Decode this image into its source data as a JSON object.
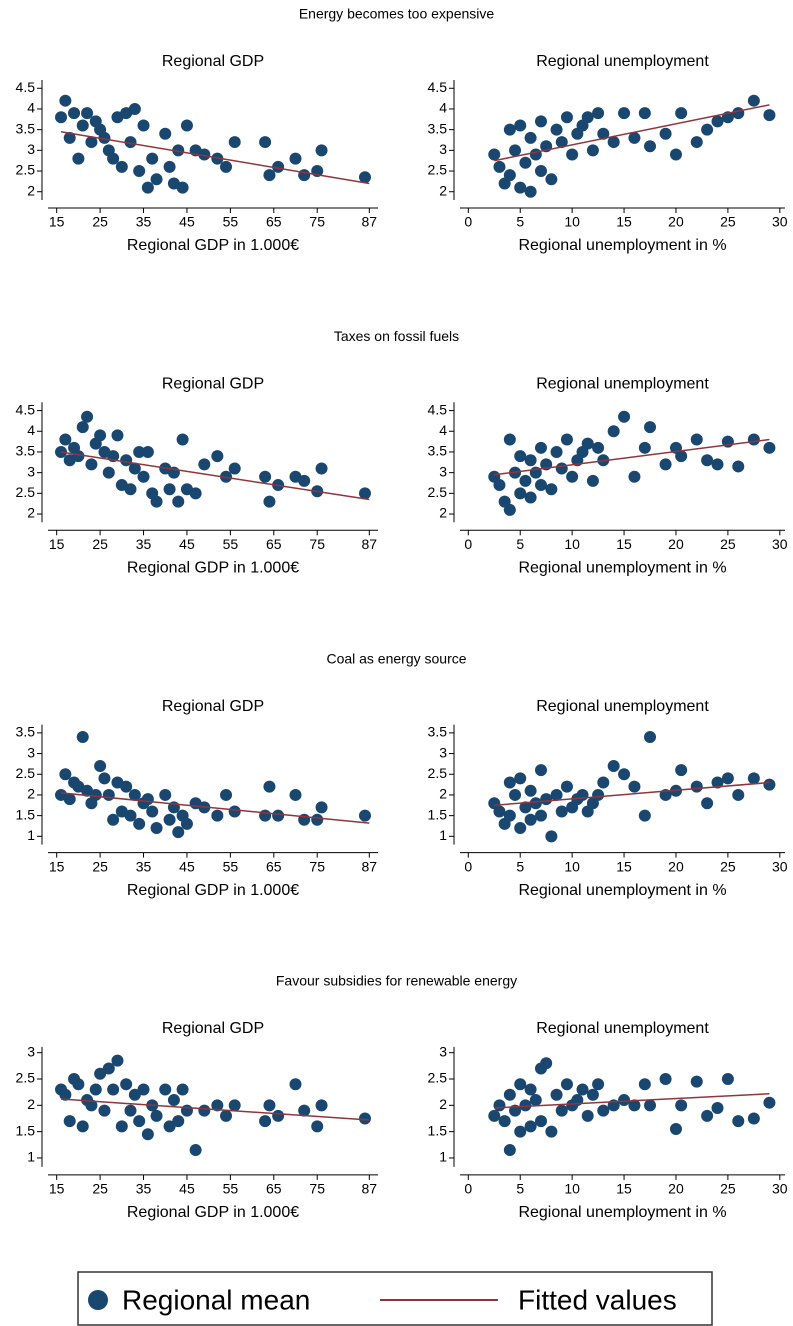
{
  "chart_data": [
    {
      "type": "scatter",
      "suptitle": "Energy becomes too expensive",
      "title": "Regional GDP",
      "x_label": "Regional GDP in 1.000€",
      "xlim": [
        13,
        89
      ],
      "xticks": [
        15,
        25,
        35,
        45,
        55,
        65,
        75,
        87
      ],
      "ylim": [
        1.8,
        4.7
      ],
      "yticks": [
        2,
        2.5,
        3,
        3.5,
        4,
        4.5
      ],
      "series": [
        {
          "name": "Regional mean",
          "color": "#1a476f",
          "x": [
            16,
            17,
            18,
            19,
            20,
            21,
            22,
            23,
            24,
            25,
            26,
            27,
            28,
            29,
            30,
            31,
            32,
            33,
            34,
            35,
            36,
            37,
            38,
            40,
            41,
            42,
            43,
            44,
            45,
            47,
            49,
            52,
            54,
            56,
            63,
            64,
            66,
            70,
            72,
            75,
            76,
            86
          ],
          "values": [
            3.8,
            4.2,
            3.3,
            3.9,
            2.8,
            3.6,
            3.9,
            3.2,
            3.7,
            3.5,
            3.3,
            3.0,
            2.8,
            3.8,
            2.6,
            3.9,
            3.2,
            4.0,
            2.5,
            3.6,
            2.1,
            2.8,
            2.3,
            3.4,
            2.6,
            2.2,
            3.0,
            2.1,
            3.6,
            3.0,
            2.9,
            2.8,
            2.6,
            3.2,
            3.2,
            2.4,
            2.6,
            2.8,
            2.4,
            2.5,
            3.0,
            2.35
          ]
        },
        {
          "name": "Fitted values",
          "color": "#90353b",
          "x": [
            16,
            87
          ],
          "values": [
            3.45,
            2.2
          ]
        }
      ]
    },
    {
      "type": "scatter",
      "title": "Regional unemployment",
      "x_label": "Regional unemployment in %",
      "xlim": [
        -0.8,
        30.5
      ],
      "xticks": [
        0,
        5,
        10,
        15,
        20,
        25,
        30
      ],
      "ylim": [
        1.8,
        4.7
      ],
      "yticks": [
        2,
        2.5,
        3,
        3.5,
        4,
        4.5
      ],
      "series": [
        {
          "name": "Regional mean",
          "color": "#1a476f",
          "x": [
            2.5,
            3,
            3.5,
            4,
            4,
            4.5,
            5,
            5,
            5.5,
            6,
            6,
            6.5,
            7,
            7,
            7.5,
            8,
            8.5,
            9,
            9.5,
            10,
            10.5,
            11,
            11.5,
            12,
            12.5,
            13,
            14,
            15,
            16,
            17,
            17.5,
            19,
            20,
            20.5,
            22,
            23,
            24,
            25,
            26,
            27.5,
            29
          ],
          "values": [
            2.9,
            2.6,
            2.2,
            3.5,
            2.4,
            3.0,
            3.6,
            2.1,
            2.7,
            3.3,
            2.0,
            2.9,
            3.7,
            2.5,
            3.1,
            2.3,
            3.5,
            3.2,
            3.8,
            2.9,
            3.4,
            3.6,
            3.8,
            3.0,
            3.9,
            3.4,
            3.2,
            3.9,
            3.3,
            3.9,
            3.1,
            3.4,
            2.9,
            3.9,
            3.2,
            3.5,
            3.7,
            3.8,
            3.9,
            4.2,
            3.85
          ]
        },
        {
          "name": "Fitted values",
          "color": "#90353b",
          "x": [
            2.5,
            29
          ],
          "values": [
            2.75,
            4.1
          ]
        }
      ]
    },
    {
      "type": "scatter",
      "suptitle": "Taxes on fossil fuels",
      "title": "Regional GDP",
      "x_label": "Regional GDP in 1.000€",
      "xlim": [
        13,
        89
      ],
      "xticks": [
        15,
        25,
        35,
        45,
        55,
        65,
        75,
        87
      ],
      "ylim": [
        1.8,
        4.7
      ],
      "yticks": [
        2,
        2.5,
        3,
        3.5,
        4,
        4.5
      ],
      "series": [
        {
          "name": "Regional mean",
          "color": "#1a476f",
          "x": [
            16,
            17,
            18,
            19,
            20,
            21,
            22,
            23,
            24,
            25,
            26,
            27,
            28,
            29,
            30,
            31,
            32,
            33,
            34,
            35,
            36,
            37,
            38,
            40,
            41,
            42,
            43,
            44,
            45,
            47,
            49,
            52,
            54,
            56,
            63,
            64,
            66,
            70,
            72,
            75,
            76,
            86
          ],
          "values": [
            3.5,
            3.8,
            3.3,
            3.6,
            3.4,
            4.1,
            4.35,
            3.2,
            3.7,
            3.9,
            3.5,
            3.0,
            3.4,
            3.9,
            2.7,
            3.3,
            2.6,
            3.1,
            3.5,
            2.9,
            3.5,
            2.5,
            2.3,
            3.1,
            2.6,
            3.0,
            2.3,
            3.8,
            2.6,
            2.5,
            3.2,
            3.4,
            2.9,
            3.1,
            2.9,
            2.3,
            2.7,
            2.9,
            2.8,
            2.55,
            3.1,
            2.5
          ]
        },
        {
          "name": "Fitted values",
          "color": "#90353b",
          "x": [
            16,
            87
          ],
          "values": [
            3.5,
            2.35
          ]
        }
      ]
    },
    {
      "type": "scatter",
      "title": "Regional unemployment",
      "x_label": "Regional unemployment in %",
      "xlim": [
        -0.8,
        30.5
      ],
      "xticks": [
        0,
        5,
        10,
        15,
        20,
        25,
        30
      ],
      "ylim": [
        1.8,
        4.7
      ],
      "yticks": [
        2,
        2.5,
        3,
        3.5,
        4,
        4.5
      ],
      "series": [
        {
          "name": "Regional mean",
          "color": "#1a476f",
          "x": [
            2.5,
            3,
            3.5,
            4,
            4,
            4.5,
            5,
            5,
            5.5,
            6,
            6,
            6.5,
            7,
            7,
            7.5,
            8,
            8.5,
            9,
            9.5,
            10,
            10.5,
            11,
            11.5,
            12,
            12.5,
            13,
            14,
            15,
            16,
            17,
            17.5,
            19,
            20,
            20.5,
            22,
            23,
            24,
            25,
            26,
            27.5,
            29
          ],
          "values": [
            2.9,
            2.7,
            2.3,
            3.8,
            2.1,
            3.0,
            3.4,
            2.5,
            2.8,
            3.3,
            2.4,
            3.0,
            3.6,
            2.7,
            3.2,
            2.6,
            3.5,
            3.1,
            3.8,
            2.9,
            3.3,
            3.5,
            3.7,
            2.8,
            3.6,
            3.3,
            4.0,
            4.35,
            2.9,
            3.6,
            4.1,
            3.2,
            3.6,
            3.4,
            3.8,
            3.3,
            3.2,
            3.75,
            3.15,
            3.8,
            3.6
          ]
        },
        {
          "name": "Fitted values",
          "color": "#90353b",
          "x": [
            2.5,
            29
          ],
          "values": [
            2.95,
            3.8
          ]
        }
      ]
    },
    {
      "type": "scatter",
      "suptitle": "Coal as energy source",
      "title": "Regional GDP",
      "x_label": "Regional GDP in 1.000€",
      "xlim": [
        13,
        89
      ],
      "xticks": [
        15,
        25,
        35,
        45,
        55,
        65,
        75,
        87
      ],
      "ylim": [
        0.8,
        3.7
      ],
      "yticks": [
        1,
        1.5,
        2,
        2.5,
        3,
        3.5
      ],
      "series": [
        {
          "name": "Regional mean",
          "color": "#1a476f",
          "x": [
            16,
            17,
            18,
            19,
            20,
            21,
            22,
            23,
            24,
            25,
            26,
            27,
            28,
            29,
            30,
            31,
            32,
            33,
            34,
            35,
            36,
            37,
            38,
            40,
            41,
            42,
            43,
            44,
            45,
            47,
            49,
            52,
            54,
            56,
            63,
            64,
            66,
            70,
            72,
            75,
            76,
            86
          ],
          "values": [
            2.0,
            2.5,
            1.9,
            2.3,
            2.2,
            3.4,
            2.1,
            1.8,
            2.0,
            2.7,
            2.4,
            2.0,
            1.4,
            2.3,
            1.6,
            2.2,
            1.5,
            2.0,
            1.3,
            1.8,
            1.9,
            1.6,
            1.2,
            2.0,
            1.4,
            1.7,
            1.1,
            1.5,
            1.3,
            1.8,
            1.7,
            1.5,
            2.0,
            1.6,
            1.5,
            2.2,
            1.5,
            2.0,
            1.4,
            1.4,
            1.7,
            1.5
          ]
        },
        {
          "name": "Fitted values",
          "color": "#90353b",
          "x": [
            16,
            87
          ],
          "values": [
            2.05,
            1.32
          ]
        }
      ]
    },
    {
      "type": "scatter",
      "title": "Regional unemployment",
      "x_label": "Regional unemployment in %",
      "xlim": [
        -0.8,
        30.5
      ],
      "xticks": [
        0,
        5,
        10,
        15,
        20,
        25,
        30
      ],
      "ylim": [
        0.8,
        3.7
      ],
      "yticks": [
        1,
        1.5,
        2,
        2.5,
        3,
        3.5
      ],
      "series": [
        {
          "name": "Regional mean",
          "color": "#1a476f",
          "x": [
            2.5,
            3,
            3.5,
            4,
            4,
            4.5,
            5,
            5,
            5.5,
            6,
            6,
            6.5,
            7,
            7,
            7.5,
            8,
            8.5,
            9,
            9.5,
            10,
            10.5,
            11,
            11.5,
            12,
            12.5,
            13,
            14,
            15,
            16,
            17,
            17.5,
            19,
            20,
            20.5,
            22,
            23,
            24,
            25,
            26,
            27.5,
            29
          ],
          "values": [
            1.8,
            1.6,
            1.3,
            2.3,
            1.5,
            2.0,
            2.4,
            1.2,
            1.7,
            2.1,
            1.4,
            1.8,
            2.6,
            1.5,
            1.9,
            1.0,
            2.0,
            1.6,
            2.2,
            1.7,
            1.9,
            2.0,
            1.6,
            1.8,
            2.0,
            2.3,
            2.7,
            2.5,
            2.2,
            1.5,
            3.4,
            2.0,
            2.1,
            2.6,
            2.2,
            1.8,
            2.3,
            2.4,
            2.0,
            2.4,
            2.25
          ]
        },
        {
          "name": "Fitted values",
          "color": "#90353b",
          "x": [
            2.5,
            29
          ],
          "values": [
            1.75,
            2.3
          ]
        }
      ]
    },
    {
      "type": "scatter",
      "suptitle": "Favour subsidies for renewable energy",
      "title": "Regional GDP",
      "x_label": "Regional GDP in 1.000€",
      "xlim": [
        13,
        89
      ],
      "xticks": [
        15,
        25,
        35,
        45,
        55,
        65,
        75,
        87
      ],
      "ylim": [
        0.83,
        3.11
      ],
      "yticks": [
        1,
        1.5,
        2,
        2.5,
        3
      ],
      "series": [
        {
          "name": "Regional mean",
          "color": "#1a476f",
          "x": [
            16,
            17,
            18,
            19,
            20,
            21,
            22,
            23,
            24,
            25,
            26,
            27,
            28,
            29,
            30,
            31,
            32,
            33,
            34,
            35,
            36,
            37,
            38,
            40,
            41,
            42,
            43,
            44,
            45,
            47,
            49,
            52,
            54,
            56,
            63,
            64,
            66,
            70,
            72,
            75,
            76,
            86
          ],
          "values": [
            2.3,
            2.2,
            1.7,
            2.5,
            2.4,
            1.6,
            2.1,
            2.0,
            2.3,
            2.6,
            1.9,
            2.7,
            2.3,
            2.85,
            1.6,
            2.4,
            1.9,
            2.2,
            1.7,
            2.3,
            1.45,
            2.0,
            1.8,
            2.3,
            1.6,
            2.1,
            1.7,
            2.3,
            1.9,
            1.15,
            1.9,
            2.0,
            1.8,
            2.0,
            1.7,
            2.0,
            1.8,
            2.4,
            1.9,
            1.6,
            2.0,
            1.75
          ]
        },
        {
          "name": "Fitted values",
          "color": "#90353b",
          "x": [
            16,
            87
          ],
          "values": [
            2.12,
            1.72
          ]
        }
      ]
    },
    {
      "type": "scatter",
      "title": "Regional unemployment",
      "x_label": "Regional unemployment in %",
      "xlim": [
        -0.8,
        30.5
      ],
      "xticks": [
        0,
        5,
        10,
        15,
        20,
        25,
        30
      ],
      "ylim": [
        0.83,
        3.11
      ],
      "yticks": [
        1,
        1.5,
        2,
        2.5,
        3
      ],
      "series": [
        {
          "name": "Regional mean",
          "color": "#1a476f",
          "x": [
            2.5,
            3,
            3.5,
            4,
            4,
            4.5,
            5,
            5,
            5.5,
            6,
            6,
            6.5,
            7,
            7,
            7.5,
            8,
            8.5,
            9,
            9.5,
            10,
            10.5,
            11,
            11.5,
            12,
            12.5,
            13,
            14,
            15,
            16,
            17,
            17.5,
            19,
            20,
            20.5,
            22,
            23,
            24,
            25,
            26,
            27.5,
            29
          ],
          "values": [
            1.8,
            2.0,
            1.7,
            2.2,
            1.15,
            1.9,
            2.4,
            1.5,
            2.0,
            2.3,
            1.6,
            2.1,
            2.7,
            1.7,
            2.8,
            1.5,
            2.2,
            1.9,
            2.4,
            2.0,
            2.1,
            2.3,
            1.8,
            2.2,
            2.4,
            1.9,
            2.0,
            2.1,
            2.0,
            2.4,
            2.0,
            2.5,
            1.55,
            2.0,
            2.45,
            1.8,
            1.95,
            2.5,
            1.7,
            1.75,
            2.05
          ]
        },
        {
          "name": "Fitted values",
          "color": "#90353b",
          "x": [
            2.5,
            29
          ],
          "values": [
            1.95,
            2.22
          ]
        }
      ]
    }
  ]
}
